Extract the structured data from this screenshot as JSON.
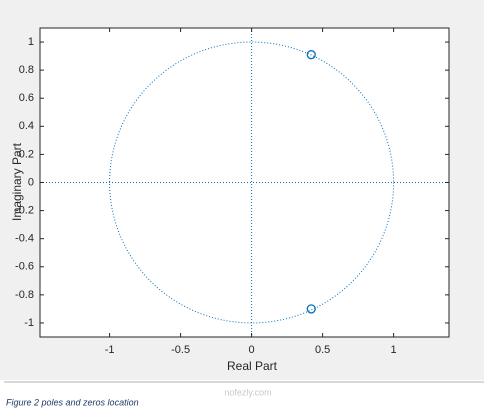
{
  "chart_data": {
    "type": "scatter",
    "xlabel": "Real Part",
    "ylabel": "Imaginary Part",
    "xlim": [
      -1.49,
      1.39
    ],
    "ylim": [
      -1.1,
      1.1
    ],
    "xticks": [
      -1,
      -0.5,
      0,
      0.5,
      1
    ],
    "yticks": [
      1,
      0.8,
      0.6,
      0.4,
      0.2,
      0,
      -0.2,
      -0.4,
      -0.6,
      -0.8,
      -1
    ],
    "x": [
      0.42,
      0.42
    ],
    "values": [
      0.91,
      -0.9
    ],
    "color": "#0072bd",
    "unit_circle": true,
    "grid": false
  },
  "watermark": "nofezly.com",
  "caption": "Figure 2 poles and zeros location"
}
